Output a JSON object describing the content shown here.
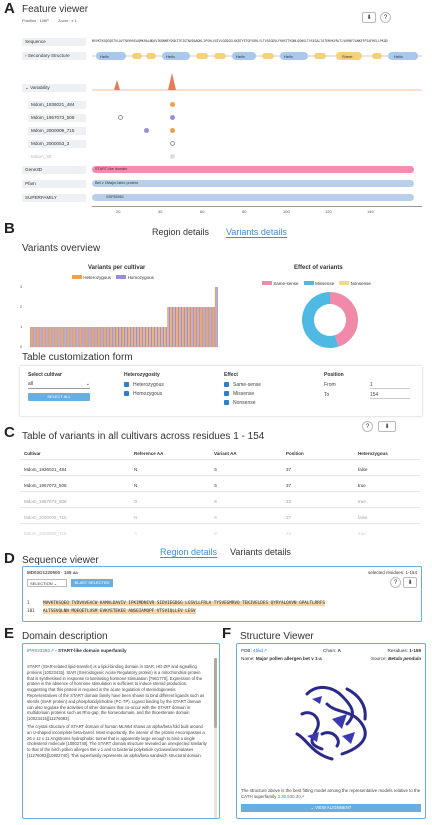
{
  "panelA": {
    "letter": "A",
    "title": "Feature viewer",
    "position_label": "Position : 106P",
    "zoom_label": "Zoom : x 1",
    "tracks": {
      "sequence": "Sequence",
      "secondary": "Secondary Structure",
      "variability": "Variability",
      "cultivars": [
        "Mdom_1936021_484",
        "Mdom_1957073_508",
        "Mdom_2000009_715",
        "Mdom_2000053_3",
        "Mdom_88"
      ],
      "gene3d": "Gene3D",
      "pfam": "Pfam",
      "superfamily": "SUPERFAMILY"
    },
    "sequence_text": "MVVKTKSQEQDTVLAVTSNYHVEAQMKRALNDAVIKDNMEYDGKITEIGTNVDAAQKLIPSHLVGIVLGGDGGLKKDTYETQFVDRLYLTVSSGDVLFKHSTTKQNLQGWGLTVSEGALTATEMVKVRLTLVKRNFIANKEFPIAFHELLPKQD",
    "helix_labels": [
      "Helix",
      "Helix",
      "Helix",
      "Helix",
      "Sheet",
      "Helix"
    ],
    "gene3d_label": "START-like domain",
    "pfam_label": "Bet v I/Major latex protein",
    "superfamily_label": "SSF55961",
    "axis_ticks": [
      "20",
      "40",
      "60",
      "80",
      "100",
      "120",
      "140"
    ]
  },
  "panelB": {
    "letter": "B",
    "tabs": [
      "Region details",
      "Variants details"
    ],
    "title": "Variants overview",
    "bar_title": "Variants per cultivar",
    "pie_title": "Effect of variants",
    "bar_legend": [
      "Heterozygous",
      "Homozygous"
    ],
    "pie_legend": [
      "Same-sense",
      "Missense",
      "Nonsense"
    ],
    "bar_y_ticks": [
      "3",
      "2",
      "1",
      "0"
    ]
  },
  "chart_data": [
    {
      "type": "bar",
      "title": "Variants per cultivar",
      "ylim": [
        0,
        3
      ],
      "series": [
        {
          "name": "Heterozygous",
          "values": [
            1,
            1,
            1,
            1,
            1,
            1,
            1,
            1,
            1,
            1,
            1,
            1,
            1,
            1,
            1,
            1,
            1,
            1,
            1,
            1,
            1,
            1,
            1,
            1,
            1,
            1,
            1,
            1,
            1,
            1,
            1,
            1,
            1,
            1,
            1,
            1,
            1,
            1,
            1,
            1,
            1,
            1,
            1,
            1,
            1,
            1,
            2,
            2,
            2,
            2,
            2,
            2,
            2,
            2,
            2,
            2,
            2,
            2,
            2,
            2,
            2,
            2,
            3
          ]
        },
        {
          "name": "Homozygous",
          "values": [
            1,
            1,
            1,
            1,
            1,
            1,
            1,
            1,
            1,
            1,
            1,
            1,
            1,
            1,
            1,
            1,
            1,
            1,
            1,
            1,
            1,
            1,
            1,
            1,
            1,
            1,
            1,
            1,
            1,
            1,
            1,
            1,
            1,
            1,
            1,
            1,
            1,
            1,
            1,
            1,
            1,
            1,
            1,
            1,
            1,
            1,
            2,
            2,
            2,
            2,
            2,
            2,
            2,
            2,
            2,
            2,
            2,
            2,
            2,
            2,
            2,
            2,
            3
          ]
        }
      ]
    },
    {
      "type": "pie",
      "title": "Effect of variants",
      "categories": [
        "Same-sense",
        "Missense",
        "Nonsense"
      ],
      "values": [
        45,
        55,
        0
      ]
    }
  ],
  "form": {
    "title": "Table customization form",
    "cultivar_label": "Select cultivar",
    "cultivar_value": "all",
    "select_all": "SELECT ALL",
    "zygosity_label": "Heterozygosity",
    "zygosity_options": [
      "Heterozygous",
      "Homozygous"
    ],
    "effect_label": "Effect",
    "effect_options": [
      "Same-sense",
      "Missense",
      "Nonsense"
    ],
    "position_label": "Position",
    "from_label": "From",
    "from_value": "1",
    "to_label": "To",
    "to_value": "154"
  },
  "panelC": {
    "letter": "C",
    "title": "Table of variants in all cultivars across residues 1 - 154",
    "headers": [
      "Cultivar",
      "Reference AA",
      "Variant AA",
      "Position",
      "Heterozygous"
    ],
    "rows": [
      [
        "Mdom_1936021_484",
        "N",
        "S",
        "37",
        "false"
      ],
      [
        "Mdom_1957073_508",
        "N",
        "S",
        "37",
        "true"
      ],
      [
        "Mdom_1957073_508",
        "G",
        "S",
        "13",
        "true"
      ],
      [
        "Mdom_2000009_715",
        "N",
        "S",
        "37",
        "false"
      ],
      [
        "Mdom_2000009_715",
        "A",
        "V",
        "24",
        "true"
      ]
    ]
  },
  "panelD": {
    "letter": "D",
    "title": "Sequence viewer",
    "tabs": [
      "Region details",
      "Variants details"
    ],
    "seq_id": "MD03G1220500 · 155 aa",
    "selected_label": "selected residues: 1-154",
    "selection_btn": "SELECTION",
    "blast_btn": "BLAST SELECTED",
    "line1_num": "1",
    "line1": "MVVKTKSQEQ TVDVAVEACW KAMALDAVIV IPKIMDNIVR SIDVIEGDGG LGSVLLFRLA TYSVEGMRVQ TEKIVELDES QYRYALQVVN GPALTLRRFS",
    "line2_num": "101",
    "line2": "ALTSEVQLNN MQEQETLVSM EVKYETEKEE ANSEIAMQPF VTSVIQLLEV LESV"
  },
  "panelE": {
    "letter": "E",
    "title": "Domain description",
    "ipr": "IPR023393",
    "ipr_desc": " - START-like domain superfamily",
    "paragraphs": [
      "START (StAR-related lipid-transfer) is a lipid-binding domain in StAR, HD-ZIP and signalling proteins [10023415]. StAR (Steroidogenic Acute Regulatory protein) is a mitochondrial protein that is synthesised in response to luteinising hormone stimulation [7961770]. Expression of the protein in the absence of hormone stimulation is sufficient to induce steroid production, suggesting that this protein is required in the acute regulation of steroidogenesis. Representatives of the START domain family have been shown to bind different ligands such as sterols (StAR protein) and phosphatidylcholine (PC-TP). Ligand binding by the START domain can also regulate the activities of other domains that co-occur with the START domain in multidomain proteins such as Rho-gap, the homeodomain, and the thioesterase domain [10023415][11276083].",
      "The crystal structure of START domain of human MLN64 shows an alpha/beta fold built around an U-shaped incomplete beta-barrel. Most importantly, the interior of the protein encompasses a 26 x 12 x 11 Angstroms hydrophobic tunnel that is apparently large enough to bind a single cholesterol molecule [10802740]. The START domain structure revealed an unexpected similarity to that of the birch pollen allergen Bet v 1 and to bacterial polyketide cyclases/aromatases [11276083][10802740]. This superfamily represents an alpha/beta sandwich structural domain."
    ]
  },
  "panelF": {
    "letter": "F",
    "title": "Structure Viewer",
    "pdb_label": "PDB:",
    "pdb_value": "4bkd",
    "chain_label": "Chain:",
    "chain_value": "A",
    "residues_label": "Residues:",
    "residues_value": "1-159",
    "name_label": "Name:",
    "name_value": "Major pollen allergen bet v 1-a",
    "source_label": "Source:",
    "source_value": "Betula pendula",
    "caption": "The structure above is the best fitting model among the representative models relative to the CATH superfamily",
    "cath": "3.30.530.20",
    "view_btn": "VIEW ALIGNMENT"
  },
  "colors": {
    "accent": "#3b8fd8",
    "heterozygous": "#f0a04b",
    "homozygous": "#9b8fd6",
    "same_sense": "#f08aa8",
    "missense": "#4fb9e3",
    "nonsense": "#f3d98a"
  }
}
